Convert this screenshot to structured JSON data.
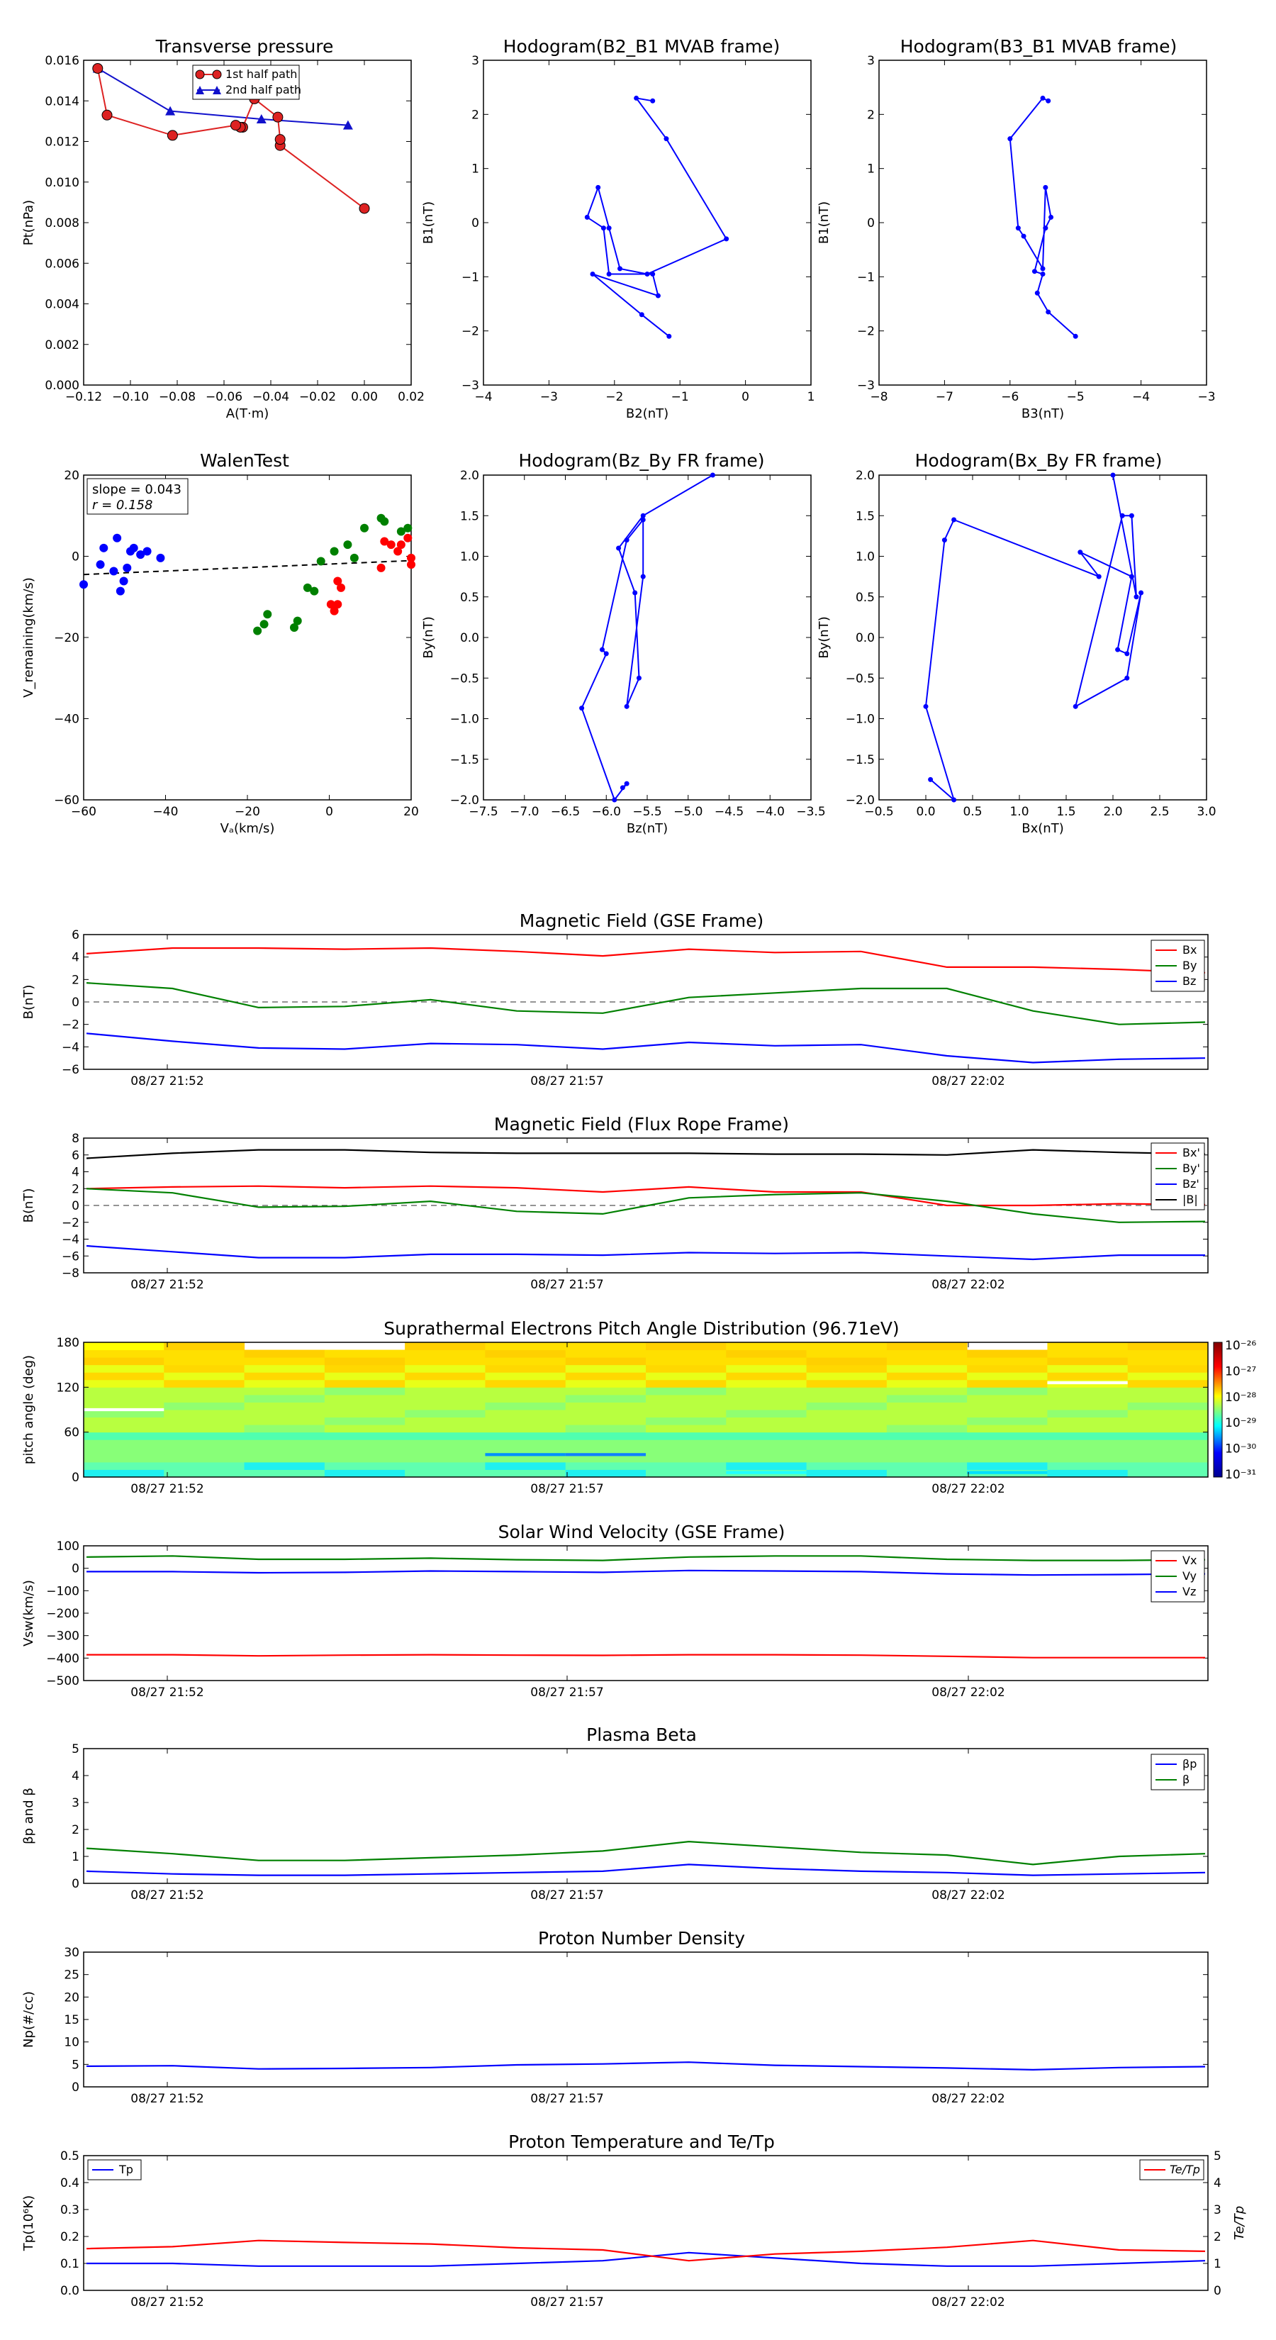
{
  "top": {
    "tp": {
      "title": "Transverse pressure",
      "xlabel": "A(T·m)",
      "ylabel": "Pt(nPa)",
      "xticks": [
        "−0.12",
        "−0.10",
        "−0.08",
        "−0.06",
        "−0.04",
        "−0.02",
        "0.00",
        "0.02"
      ],
      "yticks": [
        "0.000",
        "0.002",
        "0.004",
        "0.006",
        "0.008",
        "0.010",
        "0.012",
        "0.014",
        "0.016"
      ],
      "legend": [
        "1st half path",
        "2nd half path"
      ]
    },
    "h1": {
      "title": "Hodogram(B2_B1 MVAB frame)",
      "xlabel": "B2(nT)",
      "ylabel": "B1(nT)",
      "xticks": [
        "−4",
        "−3",
        "−2",
        "−1",
        "0",
        "1"
      ],
      "yticks": [
        "−3",
        "−2",
        "−1",
        "0",
        "1",
        "2",
        "3"
      ]
    },
    "h2": {
      "title": "Hodogram(B3_B1 MVAB frame)",
      "xlabel": "B3(nT)",
      "ylabel": "B1(nT)",
      "xticks": [
        "−8",
        "−7",
        "−6",
        "−5",
        "−4",
        "−3"
      ],
      "yticks": [
        "−3",
        "−2",
        "−1",
        "0",
        "1",
        "2",
        "3"
      ]
    },
    "walen": {
      "title": "WalenTest",
      "xlabel": "Vₐ(km/s)",
      "ylabel": "V_remaining(km/s)",
      "xticks": [
        "−60",
        "−40",
        "−20",
        "0",
        "20"
      ],
      "yticks": [
        "−60",
        "−40",
        "−20",
        "0",
        "20"
      ],
      "slope_text": "slope = 0.043",
      "r_text": "r = 0.158"
    },
    "h3": {
      "title": "Hodogram(Bz_By FR frame)",
      "xlabel": "Bz(nT)",
      "ylabel": "By(nT)",
      "xticks": [
        "−7.5",
        "−7.0",
        "−6.5",
        "−6.0",
        "−5.5",
        "−5.0",
        "−4.5",
        "−4.0",
        "−3.5"
      ],
      "yticks": [
        "−2.0",
        "−1.5",
        "−1.0",
        "−0.5",
        "0.0",
        "0.5",
        "1.0",
        "1.5",
        "2.0"
      ]
    },
    "h4": {
      "title": "Hodogram(Bx_By FR frame)",
      "xlabel": "Bx(nT)",
      "ylabel": "By(nT)",
      "xticks": [
        "−0.5",
        "0.0",
        "0.5",
        "1.0",
        "1.5",
        "2.0",
        "2.5",
        "3.0"
      ],
      "yticks": [
        "−2.0",
        "−1.5",
        "−1.0",
        "−0.5",
        "0.0",
        "0.5",
        "1.0",
        "1.5",
        "2.0"
      ]
    }
  },
  "time_ticks": [
    "08/27 21:52",
    "08/27 21:57",
    "08/27 22:02"
  ],
  "panels": {
    "mf": {
      "title": "Magnetic Field (GSE Frame)",
      "ylabel": "B(nT)",
      "yticks": [
        "−6",
        "−4",
        "−2",
        "0",
        "2",
        "4",
        "6"
      ],
      "legend": [
        "Bx",
        "By",
        "Bz"
      ]
    },
    "fr": {
      "title": "Magnetic Field (Flux Rope Frame)",
      "ylabel": "B(nT)",
      "yticks": [
        "−8",
        "−6",
        "−4",
        "−2",
        "0",
        "2",
        "4",
        "6",
        "8"
      ],
      "legend": [
        "Bx'",
        "By'",
        "Bz'",
        "|B|"
      ]
    },
    "pad": {
      "title": "Suprathermal Electrons Pitch Angle Distribution (96.71eV)",
      "ylabel": "pitch angle (deg)",
      "yticks": [
        "0",
        "60",
        "120",
        "180"
      ],
      "cbar": [
        "10⁻²⁶",
        "10⁻²⁷",
        "10⁻²⁸",
        "10⁻²⁹",
        "10⁻³⁰",
        "10⁻³¹"
      ]
    },
    "sw": {
      "title": "Solar Wind Velocity (GSE Frame)",
      "ylabel": "Vsw(km/s)",
      "yticks": [
        "−500",
        "−400",
        "−300",
        "−200",
        "−100",
        "0",
        "100"
      ],
      "legend": [
        "Vx",
        "Vy",
        "Vz"
      ]
    },
    "beta": {
      "title": "Plasma Beta",
      "ylabel": "βp and β",
      "yticks": [
        "0",
        "1",
        "2",
        "3",
        "4",
        "5"
      ],
      "legend": [
        "βp",
        "β"
      ]
    },
    "np": {
      "title": "Proton Number Density",
      "ylabel": "Np(#/cc)",
      "yticks": [
        "0",
        "5",
        "10",
        "15",
        "20",
        "25",
        "30"
      ]
    },
    "temp": {
      "title": "Proton Temperature and Te/Tp",
      "ylabel": "Tp(10⁶K)",
      "ylabel_right": "Te/Tp",
      "yticks": [
        "0.0",
        "0.1",
        "0.2",
        "0.3",
        "0.4",
        "0.5"
      ],
      "yticks_right": [
        "0",
        "1",
        "2",
        "3",
        "4",
        "5"
      ],
      "legend": [
        "Tp"
      ],
      "legend_right": [
        "Te/Tp"
      ]
    }
  },
  "colors": {
    "red": "#ff0000",
    "green": "#008000",
    "blue": "#0000ff",
    "black": "#000000",
    "first_path": "#dd2222",
    "second_path": "#1111cc"
  },
  "chart_data": [
    {
      "type": "line",
      "title": "Transverse pressure",
      "xlabel": "A(T·m)",
      "ylabel": "Pt(nPa)",
      "xlim": [
        -0.12,
        0.02
      ],
      "ylim": [
        0,
        0.016
      ],
      "series": [
        {
          "name": "1st half path",
          "x": [
            0.0,
            -0.036,
            -0.036,
            -0.037,
            -0.047,
            -0.052,
            -0.053,
            -0.055,
            -0.082,
            -0.11,
            -0.114
          ],
          "y": [
            0.0087,
            0.0118,
            0.0121,
            0.0132,
            0.0141,
            0.0127,
            0.0127,
            0.0128,
            0.0123,
            0.0133,
            0.0156
          ]
        },
        {
          "name": "2nd half path",
          "x": [
            -0.114,
            -0.083,
            -0.044,
            -0.007
          ],
          "y": [
            0.0156,
            0.0135,
            0.0131,
            0.0128
          ]
        }
      ]
    },
    {
      "type": "line",
      "title": "Hodogram(B2_B1 MVAB frame)",
      "xlabel": "B2(nT)",
      "ylabel": "B1(nT)",
      "xlim": [
        -4.5,
        1.5
      ],
      "ylim": [
        -3,
        3
      ],
      "series": [
        {
          "x": [
            -1.1,
            -1.6,
            -2.5,
            -1.3,
            -1.4,
            -2.2,
            -2.3,
            -2.6,
            -2.4,
            -2.2,
            -2.0,
            -1.5,
            -0.05,
            -1.15,
            -1.7,
            -1.4
          ],
          "y": [
            -2.1,
            -1.7,
            -0.95,
            -1.35,
            -0.95,
            -0.95,
            -0.1,
            0.1,
            0.65,
            -0.1,
            -0.85,
            -0.95,
            -0.3,
            1.55,
            2.3,
            2.25
          ]
        }
      ]
    },
    {
      "type": "line",
      "title": "Hodogram(B3_B1 MVAB frame)",
      "xlabel": "B3(nT)",
      "ylabel": "B1(nT)",
      "xlim": [
        -8.5,
        -2.5
      ],
      "ylim": [
        -3,
        3
      ],
      "series": [
        {
          "x": [
            -4.9,
            -5.4,
            -5.6,
            -5.5,
            -5.65,
            -5.45,
            -5.35,
            -5.45,
            -5.5,
            -5.85,
            -5.95,
            -6.1,
            -5.5,
            -5.4
          ],
          "y": [
            -2.1,
            -1.65,
            -1.3,
            -0.95,
            -0.9,
            -0.1,
            0.1,
            0.65,
            -0.85,
            -0.25,
            -0.1,
            1.55,
            2.3,
            2.25
          ]
        }
      ]
    },
    {
      "type": "scatter",
      "title": "WalenTest",
      "xlabel": "Vₐ(km/s)",
      "ylabel": "V_remaining(km/s)",
      "xlim": [
        -73,
        25
      ],
      "ylim": [
        -73,
        25
      ],
      "series": [
        {
          "color": "blue",
          "x": [
            -73,
            -68,
            -67,
            -64,
            -63,
            -62,
            -61,
            -60,
            -59,
            -58,
            -56,
            -54,
            -50
          ],
          "y": [
            -8,
            -2,
            3,
            -4,
            6,
            -10,
            -7,
            -3,
            2,
            3,
            1,
            2,
            0
          ]
        },
        {
          "color": "green",
          "x": [
            -21,
            -19,
            -18,
            -10,
            -9,
            -6,
            -4,
            -2,
            2,
            6,
            8,
            11,
            16,
            17,
            22,
            24
          ],
          "y": [
            -22,
            -20,
            -17,
            -21,
            -19,
            -9,
            -10,
            -1,
            2,
            4,
            0,
            9,
            12,
            11,
            8,
            9
          ]
        },
        {
          "color": "red",
          "x": [
            1,
            2,
            3,
            3,
            4,
            16,
            17,
            19,
            21,
            22,
            24,
            25,
            25
          ],
          "y": [
            -14,
            -16,
            -7,
            -14,
            -9,
            -3,
            5,
            4,
            2,
            4,
            6,
            0,
            -2
          ]
        }
      ],
      "fit_line": {
        "slope": 0.043,
        "x": [
          -73,
          25
        ],
        "y": [
          -5.0,
          -0.8
        ]
      }
    },
    {
      "type": "line",
      "title": "Hodogram(Bz_By FR frame)",
      "xlabel": "Bz(nT)",
      "ylabel": "By(nT)",
      "xlim": [
        -7.5,
        -3.5
      ],
      "ylim": [
        -2,
        2
      ],
      "series": [
        {
          "x": [
            -5.8,
            -5.75,
            -5.9,
            -6.3,
            -6.0,
            -6.05,
            -5.75,
            -5.55,
            -5.55,
            -5.75,
            -5.6,
            -5.65,
            -5.85,
            -5.55,
            -4.7
          ],
          "y": [
            -1.85,
            -1.8,
            -2.0,
            -0.87,
            -0.2,
            -0.15,
            1.2,
            1.45,
            0.75,
            -0.85,
            -0.5,
            0.55,
            1.1,
            1.5,
            2.0
          ]
        }
      ]
    },
    {
      "type": "line",
      "title": "Hodogram(Bx_By FR frame)",
      "xlabel": "Bx(nT)",
      "ylabel": "By(nT)",
      "xlim": [
        -0.5,
        3.0
      ],
      "ylim": [
        -2,
        2
      ],
      "series": [
        {
          "x": [
            0.05,
            0.3,
            0.0,
            0.2,
            0.3,
            1.85,
            1.65,
            2.2,
            2.05,
            2.15,
            2.3,
            2.15,
            1.6,
            2.1,
            2.2,
            2.25,
            2.0
          ],
          "y": [
            -1.75,
            -2.0,
            -0.85,
            1.2,
            1.45,
            0.75,
            1.05,
            0.75,
            -0.15,
            -0.2,
            0.55,
            -0.5,
            -0.85,
            1.5,
            1.5,
            0.5,
            2.0
          ]
        }
      ]
    },
    {
      "type": "line",
      "title": "Magnetic Field (GSE Frame)",
      "ylabel": "B(nT)",
      "ylim": [
        -6,
        6
      ],
      "x": [
        0,
        1,
        2,
        3,
        4,
        5,
        6,
        7,
        8,
        9,
        10,
        11,
        12,
        13
      ],
      "series": [
        {
          "name": "Bx",
          "values": [
            4.3,
            4.8,
            4.8,
            4.7,
            4.8,
            4.5,
            4.1,
            4.7,
            4.4,
            4.5,
            3.1,
            3.1,
            2.9,
            2.6
          ]
        },
        {
          "name": "By",
          "values": [
            1.7,
            1.2,
            -0.5,
            -0.4,
            0.2,
            -0.8,
            -1.0,
            0.4,
            0.8,
            1.2,
            1.2,
            -0.8,
            -2.0,
            -1.8
          ]
        },
        {
          "name": "Bz",
          "values": [
            -2.8,
            -3.5,
            -4.1,
            -4.2,
            -3.7,
            -3.8,
            -4.2,
            -3.6,
            -3.9,
            -3.8,
            -4.8,
            -5.4,
            -5.1,
            -5.0
          ]
        }
      ]
    },
    {
      "type": "line",
      "title": "Magnetic Field (Flux Rope Frame)",
      "ylabel": "B(nT)",
      "ylim": [
        -8,
        8
      ],
      "x": [
        0,
        1,
        2,
        3,
        4,
        5,
        6,
        7,
        8,
        9,
        10,
        11,
        12,
        13
      ],
      "series": [
        {
          "name": "Bx'",
          "values": [
            2.0,
            2.2,
            2.3,
            2.1,
            2.3,
            2.1,
            1.6,
            2.2,
            1.6,
            1.6,
            0.0,
            0.0,
            0.2,
            0.1
          ]
        },
        {
          "name": "By'",
          "values": [
            2.0,
            1.5,
            -0.2,
            -0.1,
            0.5,
            -0.7,
            -1.0,
            0.9,
            1.3,
            1.5,
            0.5,
            -1.0,
            -2.0,
            -1.9
          ]
        },
        {
          "name": "Bz'",
          "values": [
            -4.8,
            -5.5,
            -6.2,
            -6.2,
            -5.8,
            -5.8,
            -5.9,
            -5.6,
            -5.7,
            -5.6,
            -6.0,
            -6.4,
            -5.9,
            -5.9
          ]
        },
        {
          "name": "|B|",
          "values": [
            5.6,
            6.2,
            6.6,
            6.6,
            6.3,
            6.2,
            6.2,
            6.2,
            6.1,
            6.1,
            6.0,
            6.6,
            6.3,
            6.1
          ]
        }
      ]
    },
    {
      "type": "heatmap",
      "title": "Suprathermal Electrons Pitch Angle Distribution (96.71eV)",
      "ylabel": "pitch angle (deg)",
      "ylim": [
        0,
        180
      ],
      "colorbar_ticks": [
        "10⁻²⁶",
        "10⁻²⁷",
        "10⁻²⁸",
        "10⁻²⁹",
        "10⁻³⁰",
        "10⁻³¹"
      ]
    },
    {
      "type": "line",
      "title": "Solar Wind Velocity (GSE Frame)",
      "ylabel": "Vsw(km/s)",
      "ylim": [
        -500,
        100
      ],
      "x": [
        0,
        1,
        2,
        3,
        4,
        5,
        6,
        7,
        8,
        9,
        10,
        11,
        12,
        13
      ],
      "series": [
        {
          "name": "Vx",
          "values": [
            -385,
            -385,
            -390,
            -387,
            -385,
            -387,
            -388,
            -385,
            -385,
            -387,
            -392,
            -398,
            -398,
            -398
          ]
        },
        {
          "name": "Vy",
          "values": [
            50,
            55,
            40,
            40,
            45,
            38,
            35,
            50,
            55,
            55,
            40,
            35,
            35,
            38
          ]
        },
        {
          "name": "Vz",
          "values": [
            -15,
            -15,
            -20,
            -18,
            -12,
            -15,
            -18,
            -10,
            -12,
            -15,
            -25,
            -30,
            -28,
            -25
          ]
        }
      ]
    },
    {
      "type": "line",
      "title": "Plasma Beta",
      "ylabel": "βp and β",
      "ylim": [
        0,
        5
      ],
      "x": [
        0,
        1,
        2,
        3,
        4,
        5,
        6,
        7,
        8,
        9,
        10,
        11,
        12,
        13
      ],
      "series": [
        {
          "name": "βp",
          "values": [
            0.45,
            0.35,
            0.3,
            0.3,
            0.35,
            0.4,
            0.45,
            0.7,
            0.55,
            0.45,
            0.4,
            0.3,
            0.35,
            0.4
          ]
        },
        {
          "name": "β",
          "values": [
            1.3,
            1.1,
            0.85,
            0.85,
            0.95,
            1.05,
            1.2,
            1.55,
            1.35,
            1.15,
            1.05,
            0.7,
            1.0,
            1.1
          ]
        }
      ]
    },
    {
      "type": "line",
      "title": "Proton Number Density",
      "ylabel": "Np(#/cc)",
      "ylim": [
        0,
        30
      ],
      "x": [
        0,
        1,
        2,
        3,
        4,
        5,
        6,
        7,
        8,
        9,
        10,
        11,
        12,
        13
      ],
      "series": [
        {
          "values": [
            4.6,
            4.7,
            4.0,
            4.1,
            4.3,
            4.9,
            5.1,
            5.5,
            4.8,
            4.5,
            4.2,
            3.8,
            4.3,
            4.5
          ]
        }
      ]
    },
    {
      "type": "line",
      "title": "Proton Temperature and Te/Tp",
      "ylabel": "Tp(10⁶K)",
      "ylim": [
        0,
        0.5
      ],
      "ylim_right": [
        0,
        5
      ],
      "x": [
        0,
        1,
        2,
        3,
        4,
        5,
        6,
        7,
        8,
        9,
        10,
        11,
        12,
        13
      ],
      "series": [
        {
          "name": "Tp",
          "values": [
            0.1,
            0.1,
            0.09,
            0.09,
            0.09,
            0.1,
            0.11,
            0.14,
            0.12,
            0.1,
            0.09,
            0.09,
            0.1,
            0.11
          ]
        },
        {
          "name": "Te/Tp",
          "axis": "right",
          "values": [
            1.55,
            1.62,
            1.85,
            1.78,
            1.72,
            1.58,
            1.5,
            1.1,
            1.35,
            1.45,
            1.6,
            1.85,
            1.5,
            1.45
          ]
        }
      ]
    }
  ]
}
